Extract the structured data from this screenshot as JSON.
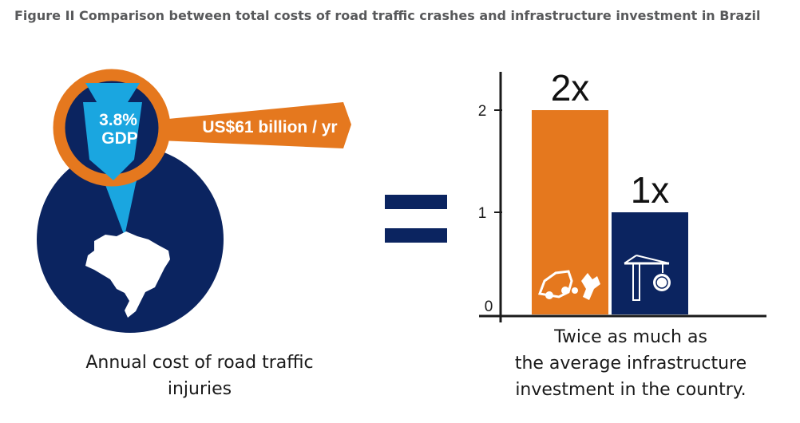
{
  "title": "Figure II Comparison between total costs of road traffic crashes and infrastructure investment in Brazil",
  "left_panel": {
    "gdp_share_line1": "3.8%",
    "gdp_share_line2": "GDP",
    "cost_label": "US$61 billion / yr",
    "caption_line1": "Annual cost of road traffic",
    "caption_line2": "injuries"
  },
  "equals_sign": "=",
  "right_panel": {
    "caption_line1": "Twice as much as",
    "caption_line2": "the average infrastructure",
    "caption_line3": "investment in the country."
  },
  "icons": {
    "bar1": "car-crash-icon",
    "bar2": "crane-money-icon"
  },
  "colors": {
    "orange": "#e5781e",
    "navy": "#0b2460",
    "light_blue": "#1aa6e0",
    "title_gray": "#58595b"
  },
  "chart_data": {
    "type": "bar",
    "categories": [
      "Annual cost of road traffic injuries",
      "Average infrastructure investment"
    ],
    "values": [
      2,
      1
    ],
    "data_labels": [
      "2x",
      "1x"
    ],
    "bar_colors": [
      "#e5781e",
      "#0b2460"
    ],
    "yticks": [
      0,
      1,
      2
    ],
    "ylim": [
      0,
      2.25
    ],
    "xlabel": "",
    "ylabel": "",
    "grid": false
  }
}
